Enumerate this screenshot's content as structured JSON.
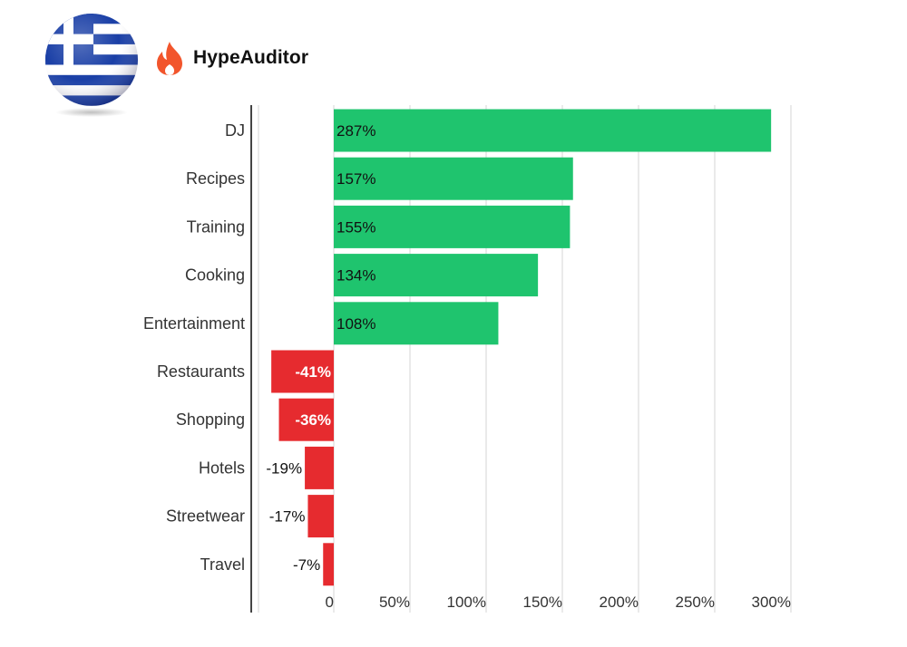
{
  "brand": {
    "name": "HypeAuditor",
    "color": "#f2552c",
    "flag": "greece-flag"
  },
  "chart_data": {
    "type": "bar",
    "orientation": "horizontal",
    "title": "",
    "xlabel": "",
    "ylabel": "",
    "categories": [
      "DJ",
      "Recipes",
      "Training",
      "Cooking",
      "Entertainment",
      "Restaurants",
      "Shopping",
      "Hotels",
      "Streetwear",
      "Travel"
    ],
    "values": [
      287,
      157,
      155,
      134,
      108,
      -41,
      -36,
      -19,
      -17,
      -7
    ],
    "value_labels": [
      "287%",
      "157%",
      "155%",
      "134%",
      "108%",
      "-41%",
      "-36%",
      "-19%",
      "-17%",
      "-7%"
    ],
    "xlim": [
      -50,
      300
    ],
    "ticks": [
      0,
      50,
      100,
      150,
      200,
      250,
      300
    ],
    "tick_labels": [
      "0",
      "50%",
      "100%",
      "150%",
      "200%",
      "250%",
      "300%"
    ],
    "grid": true,
    "legend": "none",
    "colors": {
      "positive": "#1fc46e",
      "negative": "#e62b2f",
      "grid": "#d6d6d6",
      "axis": "#444444"
    }
  }
}
